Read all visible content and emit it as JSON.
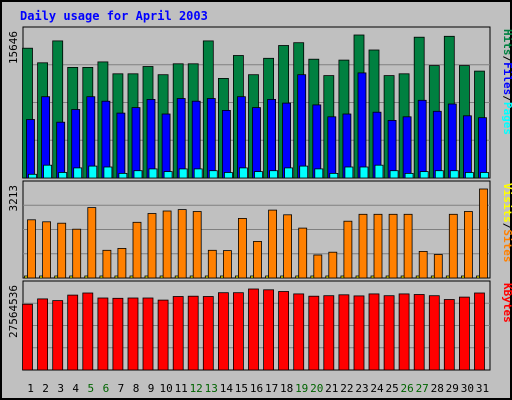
{
  "chart_data": [
    {
      "type": "bar",
      "title": "Daily usage for April 2003",
      "panel": "hits-files-pages",
      "ymax_label": "15646",
      "ylim": [
        0,
        15646
      ],
      "categories": [
        "1",
        "2",
        "3",
        "4",
        "5",
        "6",
        "7",
        "8",
        "9",
        "10",
        "11",
        "12",
        "13",
        "14",
        "15",
        "16",
        "17",
        "18",
        "19",
        "20",
        "21",
        "22",
        "23",
        "24",
        "25",
        "26",
        "27",
        "28",
        "29",
        "30",
        "31"
      ],
      "series": [
        {
          "name": "Hits",
          "color": "#008040",
          "values": [
            14200,
            12600,
            15000,
            12100,
            12100,
            12700,
            11400,
            11400,
            12200,
            11300,
            12500,
            12500,
            15000,
            10900,
            13400,
            11300,
            13100,
            14500,
            14800,
            13000,
            11200,
            12900,
            15646,
            14000,
            11200,
            11400,
            15400,
            12300,
            15500,
            12300,
            11700
          ]
        },
        {
          "name": "Files",
          "color": "#0000ff",
          "values": [
            6400,
            8900,
            6100,
            7500,
            8900,
            8400,
            7100,
            7700,
            8600,
            7000,
            8700,
            8400,
            8700,
            7400,
            8900,
            7700,
            8600,
            8200,
            11300,
            8000,
            6700,
            7000,
            11500,
            7200,
            6300,
            6700,
            8500,
            7300,
            8100,
            6800,
            6600
          ]
        },
        {
          "name": "Pages",
          "color": "#00ffff",
          "values": [
            400,
            1400,
            600,
            1100,
            1300,
            1200,
            500,
            800,
            1000,
            700,
            1000,
            1000,
            800,
            600,
            1100,
            700,
            800,
            1100,
            1300,
            1000,
            500,
            1200,
            1200,
            1400,
            800,
            500,
            700,
            800,
            800,
            600,
            600
          ]
        }
      ],
      "legend": [
        "Pages",
        "Files",
        "Hits"
      ]
    },
    {
      "type": "bar",
      "panel": "visits-sites",
      "ymax_label": "3213",
      "ylim": [
        0,
        3213
      ],
      "categories": [
        "1",
        "2",
        "3",
        "4",
        "5",
        "6",
        "7",
        "8",
        "9",
        "10",
        "11",
        "12",
        "13",
        "14",
        "15",
        "16",
        "17",
        "18",
        "19",
        "20",
        "21",
        "22",
        "23",
        "24",
        "25",
        "26",
        "27",
        "28",
        "29",
        "30",
        "31"
      ],
      "series": [
        {
          "name": "Visits",
          "color": "#ffff00",
          "values": [
            40,
            60,
            50,
            45,
            70,
            60,
            40,
            50,
            60,
            65,
            50,
            40,
            55,
            45,
            60,
            50,
            55,
            50,
            45,
            40,
            55,
            60,
            65,
            55,
            50,
            50,
            45,
            55,
            60,
            50,
            40
          ]
        },
        {
          "name": "Sites",
          "color": "#ff8000",
          "values": [
            2100,
            2030,
            1980,
            1760,
            2540,
            1000,
            1070,
            2010,
            2330,
            2420,
            2470,
            2400,
            1000,
            990,
            2150,
            1320,
            2450,
            2280,
            1800,
            830,
            930,
            2050,
            2300,
            2300,
            2300,
            2300,
            960,
            850,
            2300,
            2400,
            3213
          ]
        }
      ],
      "legend": [
        "Sites",
        "Visits"
      ]
    },
    {
      "type": "bar",
      "panel": "kbytes",
      "ymax_label": "27564536",
      "ylim": [
        0,
        27564536
      ],
      "categories": [
        "1",
        "2",
        "3",
        "4",
        "5",
        "6",
        "7",
        "8",
        "9",
        "10",
        "11",
        "12",
        "13",
        "14",
        "15",
        "16",
        "17",
        "18",
        "19",
        "20",
        "21",
        "22",
        "23",
        "24",
        "25",
        "26",
        "27",
        "28",
        "29",
        "30",
        "31"
      ],
      "series": [
        {
          "name": "KBytes",
          "color": "#ff0000",
          "values": [
            22400,
            24200,
            23600,
            25500,
            26200,
            24500,
            24400,
            24500,
            24500,
            23800,
            25000,
            25100,
            25000,
            26300,
            26300,
            27564,
            27300,
            26700,
            25900,
            25100,
            25300,
            25600,
            25200,
            25900,
            25300,
            25900,
            25700,
            25300,
            24000,
            24800,
            26200
          ]
        }
      ],
      "legend": [
        "KBytes"
      ]
    }
  ],
  "weekend_days": [
    "5",
    "6",
    "12",
    "13",
    "19",
    "20",
    "26",
    "27"
  ],
  "colors": {
    "background": "#c0c0c0",
    "plot": "#c0c0c0",
    "title": "#0000ff",
    "weekday_label": "#000000",
    "weekend_label": "#006400"
  }
}
